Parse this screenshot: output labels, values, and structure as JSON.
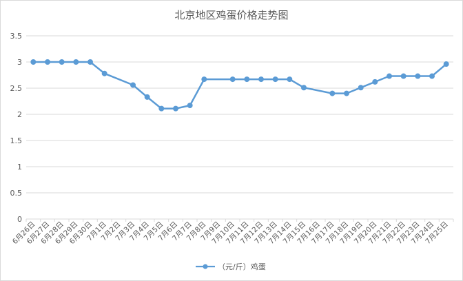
{
  "chart_data": {
    "type": "line",
    "title": "北京地区鸡蛋价格走势图",
    "xlabel": "",
    "ylabel": "",
    "ylim": [
      0,
      3.5
    ],
    "yticks": [
      "0",
      "0.5",
      "1",
      "1.5",
      "2",
      "2.5",
      "3",
      "3.5"
    ],
    "ytick_values": [
      0,
      0.5,
      1,
      1.5,
      2,
      2.5,
      3,
      3.5
    ],
    "grid": "horizontal",
    "legend_position": "bottom",
    "colors": {
      "series": "#5b9bd5",
      "grid": "#d9d9d9",
      "text": "#595959"
    },
    "categories": [
      "6月26日",
      "6月27日",
      "6月28日",
      "6月29日",
      "6月30日",
      "7月1日",
      "7月2日",
      "7月3日",
      "7月4日",
      "7月5日",
      "7月6日",
      "7月7日",
      "7月8日",
      "7月9日",
      "7月10日",
      "7月11日",
      "7月12日",
      "7月13日",
      "7月14日",
      "7月15日",
      "7月16日",
      "7月17日",
      "7月18日",
      "7月19日",
      "7月20日",
      "7月21日",
      "7月22日",
      "7月23日",
      "7月24日",
      "7月25日"
    ],
    "series": [
      {
        "name": "（元/斤）鸡蛋",
        "values": [
          3.0,
          3.0,
          3.0,
          3.0,
          3.0,
          2.78,
          null,
          2.56,
          2.33,
          2.11,
          2.11,
          2.17,
          2.67,
          null,
          2.67,
          2.67,
          2.67,
          2.67,
          2.67,
          2.51,
          null,
          2.4,
          2.4,
          2.51,
          2.62,
          2.73,
          2.73,
          2.73,
          2.73,
          2.96
        ]
      }
    ]
  }
}
